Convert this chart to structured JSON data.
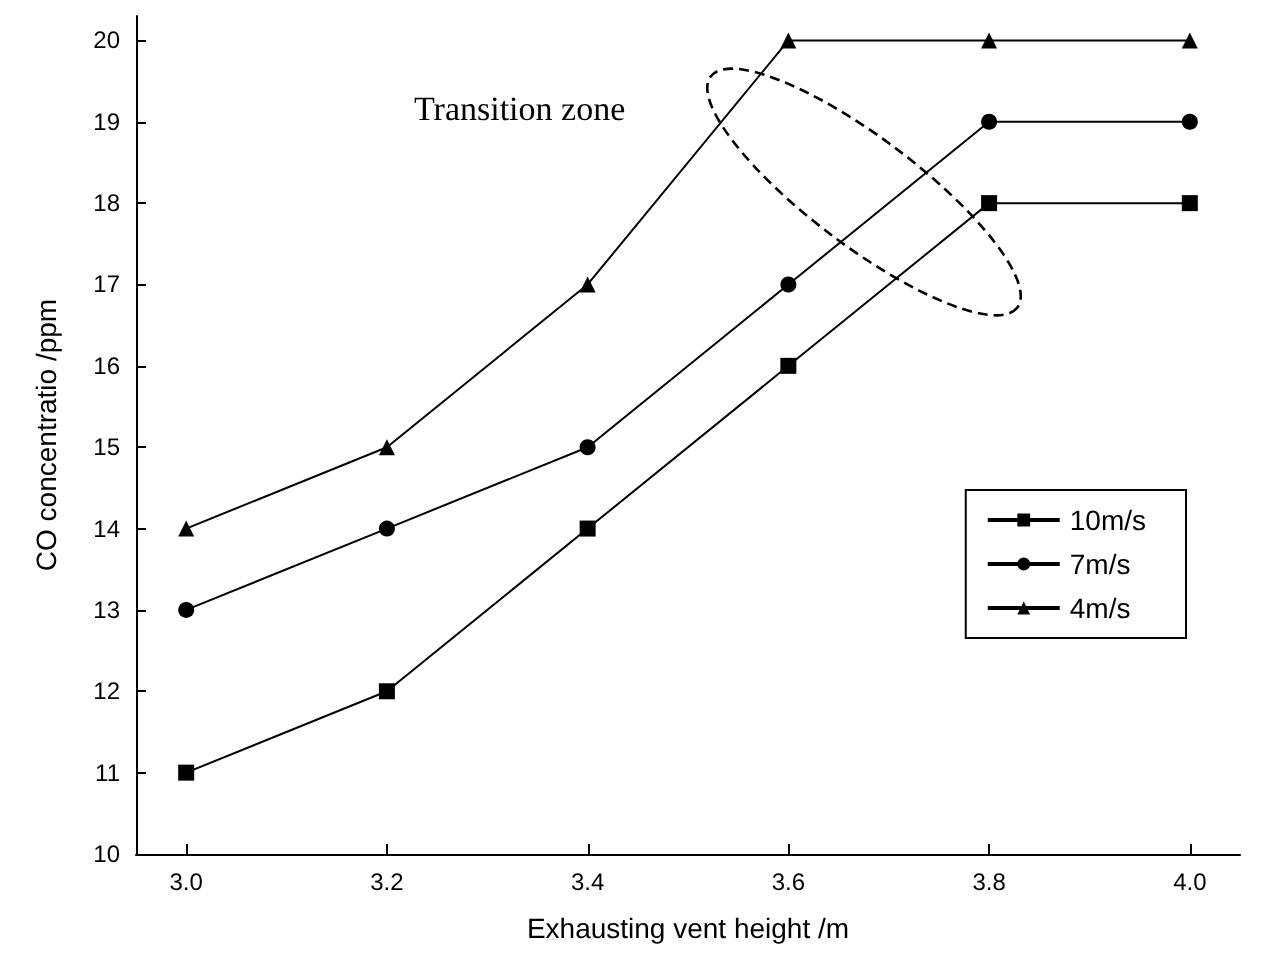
{
  "chart_data": {
    "type": "line",
    "xlabel": "Exhausting vent height /m",
    "ylabel": "CO concentratio /ppm",
    "annotations": [
      "Transition zone"
    ],
    "x": [
      3.0,
      3.2,
      3.4,
      3.6,
      3.8,
      4.0
    ],
    "series": [
      {
        "name": "10m/s",
        "color": "#000000",
        "marker": "square",
        "values": [
          11,
          12,
          14,
          16,
          18,
          18
        ]
      },
      {
        "name": "7m/s",
        "color": "#000000",
        "marker": "circle",
        "values": [
          13,
          14,
          15,
          17,
          19,
          19
        ]
      },
      {
        "name": "4m/s",
        "color": "#000000",
        "marker": "triangle",
        "values": [
          14,
          15,
          17,
          20,
          20,
          20
        ]
      }
    ],
    "xlim": [
      2.95,
      4.05
    ],
    "xticks": [
      {
        "value": 3,
        "label": "3.0"
      },
      {
        "value": 3.2,
        "label": "3.2"
      },
      {
        "value": 3.4,
        "label": "3.4"
      },
      {
        "value": 3.6,
        "label": "3.6"
      },
      {
        "value": 3.8,
        "label": "3.8"
      },
      {
        "value": 4,
        "label": "4.0"
      }
    ],
    "ylim": [
      10,
      20.3
    ],
    "yticks": [
      10,
      11,
      12,
      13,
      14,
      15,
      16,
      17,
      18,
      19,
      20
    ],
    "grid": false,
    "legend": "right",
    "line_style": "solid"
  }
}
